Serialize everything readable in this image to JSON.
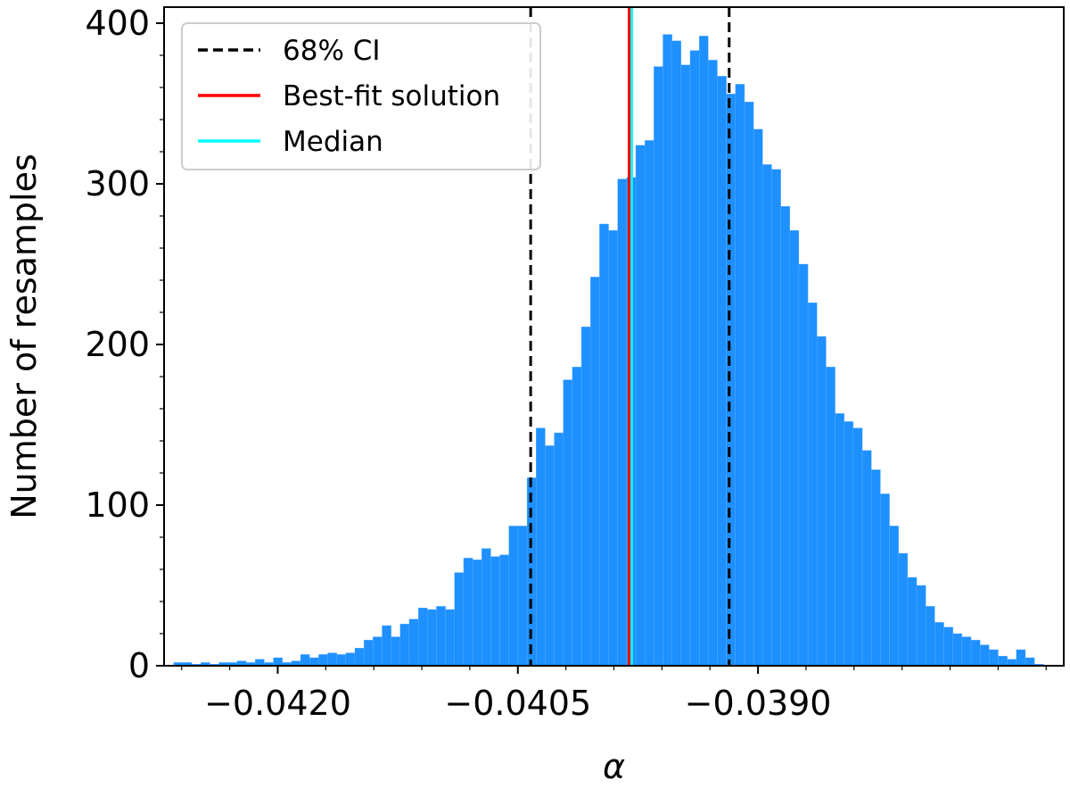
{
  "chart_data": {
    "type": "bar",
    "xlabel": "α",
    "ylabel": "Number of resamples",
    "xlim": [
      -0.04271,
      -0.03709
    ],
    "ylim": [
      0,
      410
    ],
    "x_ticks": [
      -0.042,
      -0.0405,
      -0.039
    ],
    "x_tick_labels": [
      "−0.0420",
      "−0.0405",
      "−0.0390"
    ],
    "y_ticks": [
      0,
      100,
      200,
      300,
      400
    ],
    "y_tick_labels": [
      "0",
      "100",
      "200",
      "300",
      "400"
    ],
    "bar_color": "#1E90FF",
    "bin_start": -0.04265,
    "bin_width": 5.66e-05,
    "values": [
      2,
      2,
      1,
      2,
      1,
      2,
      2,
      3,
      2,
      4,
      2,
      5,
      2,
      3,
      7,
      5,
      7,
      8,
      7,
      8,
      11,
      16,
      18,
      25,
      18,
      26,
      29,
      36,
      35,
      37,
      35,
      58,
      67,
      66,
      73,
      68,
      69,
      87,
      87,
      117,
      148,
      137,
      145,
      178,
      186,
      211,
      242,
      275,
      271,
      303,
      304,
      324,
      327,
      373,
      393,
      389,
      374,
      383,
      392,
      377,
      367,
      356,
      362,
      351,
      334,
      312,
      309,
      286,
      271,
      250,
      226,
      205,
      186,
      157,
      152,
      148,
      134,
      122,
      107,
      87,
      70,
      55,
      50,
      37,
      27,
      24,
      20,
      18,
      16,
      13,
      10,
      6,
      4,
      10,
      5,
      1
    ],
    "vlines": [
      {
        "name": "68% CI",
        "x": -0.04042,
        "color": "#000000",
        "style": "dashed"
      },
      {
        "name": "68% CI",
        "x": -0.03918,
        "color": "#000000",
        "style": "dashed"
      },
      {
        "name": "Median",
        "x": -0.039789,
        "color": "#00FFFF",
        "style": "solid"
      },
      {
        "name": "Best-fit solution",
        "x": -0.039805,
        "color": "#FF0000",
        "style": "solid"
      }
    ],
    "legend": {
      "placement": "upper-left",
      "entries": [
        {
          "label": "68% CI",
          "color": "#000000",
          "style": "dashed"
        },
        {
          "label": "Best-fit solution",
          "color": "#FF0000",
          "style": "solid"
        },
        {
          "label": "Median",
          "color": "#00FFFF",
          "style": "solid"
        }
      ]
    },
    "grid": false
  }
}
